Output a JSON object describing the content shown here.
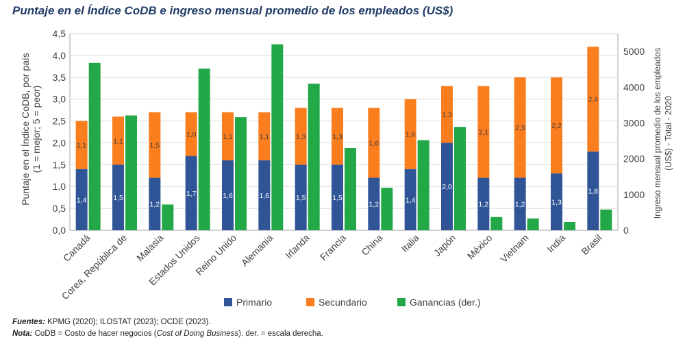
{
  "title": "Puntaje en el Índice CoDB e ingreso mensual promedio de los empleados (US$)",
  "chart_data": {
    "type": "bar",
    "title": "Puntaje en el Índice CoDB e ingreso mensual promedio de los empleados (US$)",
    "categories": [
      "Canadá",
      "Corea, República de",
      "Malasia",
      "Estados Unidos",
      "Reino Unido",
      "Alemania",
      "Irlanda",
      "Francia",
      "China",
      "Italia",
      "Japón",
      "México",
      "Vietnam",
      "India",
      "Brasil"
    ],
    "series": [
      {
        "name": "Primario",
        "axis": "left",
        "stack": "codb",
        "color": "#2f5597",
        "values": [
          1.4,
          1.5,
          1.2,
          1.7,
          1.6,
          1.6,
          1.5,
          1.5,
          1.2,
          1.4,
          2.0,
          1.2,
          1.2,
          1.3,
          1.8
        ],
        "labels": [
          "1,4",
          "1,5",
          "1,2",
          "1,7",
          "1,6",
          "1,6",
          "1,5",
          "1,5",
          "1,2",
          "1,4",
          "2,0",
          "1,2",
          "1,2",
          "1,3",
          "1,8"
        ]
      },
      {
        "name": "Secundario",
        "axis": "left",
        "stack": "codb",
        "color": "#fb7e1e",
        "values": [
          1.1,
          1.1,
          1.5,
          1.0,
          1.1,
          1.1,
          1.3,
          1.3,
          1.6,
          1.6,
          1.3,
          2.1,
          2.3,
          2.2,
          2.4
        ],
        "labels": [
          "1,1",
          "1,1",
          "1,5",
          "1,0",
          "1,1",
          "1,1",
          "1,3",
          "1,3",
          "1,6",
          "1,6",
          "1,3",
          "2,1",
          "2,3",
          "2,2",
          "2,4"
        ]
      },
      {
        "name": "Ganancias (der.)",
        "axis": "right",
        "color": "#23a847",
        "values": [
          4680,
          3210,
          720,
          4520,
          3160,
          5200,
          4100,
          2300,
          1190,
          2520,
          2890,
          370,
          330,
          230,
          580
        ]
      }
    ],
    "ylabel": "Puntaje en el Índice CoDB, por país (1 = mejor; 5 = peor)",
    "ylabel_line1": "Puntaje en el Índice CoDB, por país",
    "ylabel_line2": "(1 = mejor; 5 = peor)",
    "ylim": [
      0,
      4.5
    ],
    "yticks": [
      "0,0",
      "0,5",
      "1,0",
      "1,5",
      "2,0",
      "2,5",
      "3,0",
      "3,5",
      "4,0",
      "4,5"
    ],
    "y2label": "Ingreso mensual promedio de los empleados (US$) - Total - 2020",
    "y2label_line1": "Ingreso mensual promedio de los empleados",
    "y2label_line2": "(US$) - Total - 2020",
    "y2lim": [
      0,
      5500
    ],
    "y2ticks": [
      "0",
      "1000",
      "2000",
      "3000",
      "4000",
      "5000"
    ],
    "legend": [
      "Primario",
      "Secundario",
      "Ganancias (der.)"
    ],
    "legend_position": "bottom"
  },
  "notes": {
    "sources_label": "Fuentes:",
    "sources_text": "KPMG (2020); ILOSTAT (2023); OCDE (2023).",
    "note_label": "Nota:",
    "note_text_1": "CoDB = Costo de hacer negocios (",
    "note_text_italic": "Cost of Doing Business",
    "note_text_2": "). der. = escala derecha."
  }
}
